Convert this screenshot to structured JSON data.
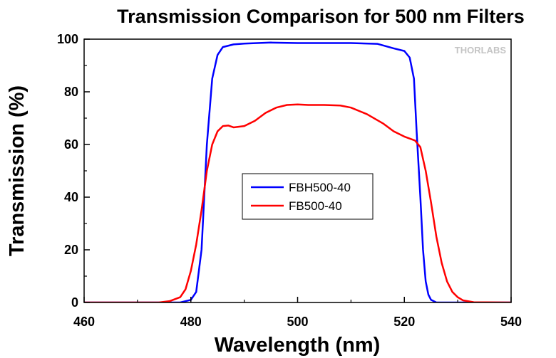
{
  "chart_data": {
    "type": "line",
    "title": "Transmission Comparison for 500 nm Filters",
    "xlabel": "Wavelength (nm)",
    "ylabel": "Transmission (%)",
    "xlim": [
      460,
      540
    ],
    "ylim": [
      0,
      100
    ],
    "x_ticks": [
      "460",
      "480",
      "500",
      "520",
      "540"
    ],
    "y_ticks": [
      "0",
      "20",
      "40",
      "60",
      "80",
      "100"
    ],
    "grid": false,
    "legend_position": "center",
    "watermark": "THORLABS",
    "series": [
      {
        "name": "FBH500-40",
        "color": "#0000ff",
        "points": [
          [
            460,
            0
          ],
          [
            478,
            0
          ],
          [
            480,
            1
          ],
          [
            481,
            4
          ],
          [
            482,
            20
          ],
          [
            483,
            60
          ],
          [
            484,
            85
          ],
          [
            485,
            94
          ],
          [
            486,
            97
          ],
          [
            488,
            98
          ],
          [
            490,
            98.3
          ],
          [
            495,
            98.7
          ],
          [
            500,
            98.5
          ],
          [
            505,
            98.5
          ],
          [
            510,
            98.5
          ],
          [
            515,
            98.2
          ],
          [
            518,
            96.5
          ],
          [
            520,
            95.5
          ],
          [
            521,
            93
          ],
          [
            521.8,
            85
          ],
          [
            522.3,
            65
          ],
          [
            523,
            40
          ],
          [
            523.5,
            20
          ],
          [
            524,
            8
          ],
          [
            524.5,
            3
          ],
          [
            525,
            1
          ],
          [
            526,
            0
          ],
          [
            540,
            0
          ]
        ]
      },
      {
        "name": "FB500-40",
        "color": "#ff0000",
        "points": [
          [
            460,
            0
          ],
          [
            474,
            0
          ],
          [
            476,
            0.5
          ],
          [
            478,
            2
          ],
          [
            479,
            5
          ],
          [
            480,
            12
          ],
          [
            481,
            22
          ],
          [
            482,
            35
          ],
          [
            483,
            50
          ],
          [
            484,
            60
          ],
          [
            485,
            65
          ],
          [
            486,
            67
          ],
          [
            487,
            67.2
          ],
          [
            488,
            66.5
          ],
          [
            490,
            67
          ],
          [
            492,
            69
          ],
          [
            494,
            72
          ],
          [
            496,
            74
          ],
          [
            498,
            75
          ],
          [
            500,
            75.2
          ],
          [
            502,
            75
          ],
          [
            505,
            75
          ],
          [
            508,
            74.8
          ],
          [
            510,
            74
          ],
          [
            513,
            71.5
          ],
          [
            516,
            68
          ],
          [
            518,
            65
          ],
          [
            520,
            63
          ],
          [
            522,
            61.5
          ],
          [
            523,
            59
          ],
          [
            524,
            50
          ],
          [
            525,
            38
          ],
          [
            526,
            25
          ],
          [
            527,
            15
          ],
          [
            528,
            8
          ],
          [
            529,
            4
          ],
          [
            530,
            2
          ],
          [
            531,
            0.8
          ],
          [
            533,
            0.1
          ],
          [
            540,
            0
          ]
        ]
      }
    ]
  }
}
